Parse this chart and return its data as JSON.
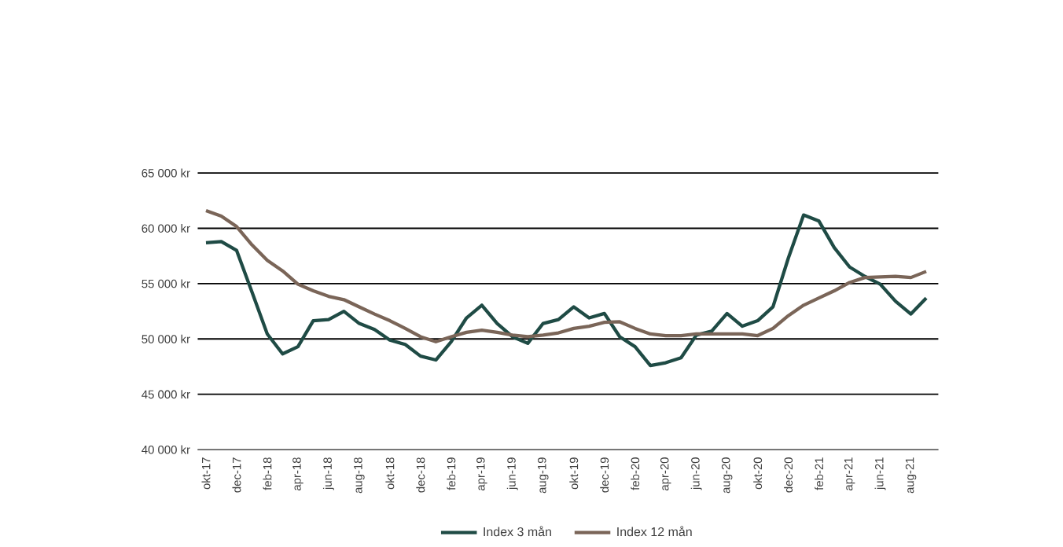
{
  "chart_data": {
    "type": "line",
    "x": [
      "2017-10",
      "2017-11",
      "2017-12",
      "2018-01",
      "2018-02",
      "2018-03",
      "2018-04",
      "2018-05",
      "2018-06",
      "2018-07",
      "2018-08",
      "2018-09",
      "2018-10",
      "2018-11",
      "2018-12",
      "2019-01",
      "2019-02",
      "2019-03",
      "2019-04",
      "2019-05",
      "2019-06",
      "2019-07",
      "2019-08",
      "2019-09",
      "2019-10",
      "2019-11",
      "2019-12",
      "2020-01",
      "2020-02",
      "2020-03",
      "2020-04",
      "2020-05",
      "2020-06",
      "2020-07",
      "2020-08",
      "2020-09",
      "2020-10",
      "2020-11",
      "2020-12",
      "2021-01",
      "2021-02",
      "2021-03",
      "2021-04",
      "2021-05",
      "2021-06",
      "2021-07",
      "2021-08",
      "2021-09"
    ],
    "series": [
      {
        "name": "Index 3 mån",
        "color": "#1f4b45",
        "values": [
          58700,
          58800,
          58000,
          54250,
          50450,
          48650,
          49300,
          51650,
          51750,
          52500,
          51400,
          50850,
          49900,
          49500,
          48450,
          48100,
          49750,
          51900,
          53050,
          51400,
          50200,
          49600,
          51400,
          51750,
          52900,
          51900,
          52300,
          50200,
          49300,
          47600,
          47850,
          48300,
          50350,
          50700,
          52300,
          51150,
          51650,
          52900,
          57300,
          61200,
          60650,
          58250,
          56500,
          55650,
          54950,
          53400,
          52250,
          53700
        ]
      },
      {
        "name": "Index 12 mån",
        "color": "#7a6558",
        "values": [
          61600,
          61100,
          60150,
          58500,
          57100,
          56150,
          54950,
          54350,
          53850,
          53550,
          52900,
          52250,
          51650,
          50950,
          50200,
          49750,
          50200,
          50600,
          50800,
          50600,
          50350,
          50200,
          50350,
          50550,
          50950,
          51150,
          51500,
          51550,
          50950,
          50450,
          50300,
          50300,
          50450,
          50450,
          50450,
          50450,
          50300,
          50950,
          52100,
          53050,
          53700,
          54350,
          55100,
          55550,
          55600,
          55650,
          55550,
          56100
        ]
      }
    ],
    "xlim": [
      "2017-09-15",
      "2021-09-25"
    ],
    "xticks": [
      {
        "value": "2017-10",
        "label": "okt-17"
      },
      {
        "value": "2017-12",
        "label": "dec-17"
      },
      {
        "value": "2018-02",
        "label": "feb-18"
      },
      {
        "value": "2018-04",
        "label": "apr-18"
      },
      {
        "value": "2018-06",
        "label": "jun-18"
      },
      {
        "value": "2018-08",
        "label": "aug-18"
      },
      {
        "value": "2018-10",
        "label": "okt-18"
      },
      {
        "value": "2018-12",
        "label": "dec-18"
      },
      {
        "value": "2019-02",
        "label": "feb-19"
      },
      {
        "value": "2019-04",
        "label": "apr-19"
      },
      {
        "value": "2019-06",
        "label": "jun-19"
      },
      {
        "value": "2019-08",
        "label": "aug-19"
      },
      {
        "value": "2019-10",
        "label": "okt-19"
      },
      {
        "value": "2019-12",
        "label": "dec-19"
      },
      {
        "value": "2020-02",
        "label": "feb-20"
      },
      {
        "value": "2020-04",
        "label": "apr-20"
      },
      {
        "value": "2020-06",
        "label": "jun-20"
      },
      {
        "value": "2020-08",
        "label": "aug-20"
      },
      {
        "value": "2020-10",
        "label": "okt-20"
      },
      {
        "value": "2020-12",
        "label": "dec-20"
      },
      {
        "value": "2021-02",
        "label": "feb-21"
      },
      {
        "value": "2021-04",
        "label": "apr-21"
      },
      {
        "value": "2021-06",
        "label": "jun-21"
      },
      {
        "value": "2021-08",
        "label": "aug-21"
      }
    ],
    "ylim": [
      40000,
      65000
    ],
    "yticks": [
      {
        "value": 40000,
        "label": "40 000 kr"
      },
      {
        "value": 45000,
        "label": "45 000 kr"
      },
      {
        "value": 50000,
        "label": "50 000 kr"
      },
      {
        "value": 55000,
        "label": "55 000 kr"
      },
      {
        "value": 60000,
        "label": "60 000 kr"
      },
      {
        "value": 65000,
        "label": "65 000 kr"
      }
    ],
    "grid": "y",
    "legend": "bottom",
    "marker": "none",
    "line_style": "solid"
  }
}
